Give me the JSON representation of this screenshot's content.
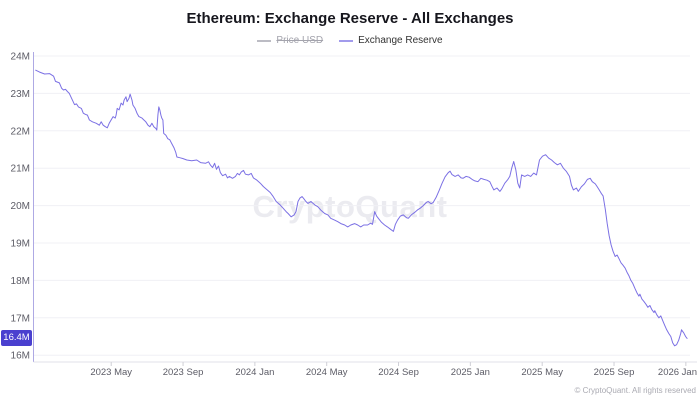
{
  "title": "Ethereum: Exchange Reserve - All Exchanges",
  "legend": [
    {
      "label": "Price USD",
      "color": "#bcbcc4",
      "disabled": true
    },
    {
      "label": "Exchange Reserve",
      "color": "#a29bec",
      "disabled": false
    }
  ],
  "watermark": "CryptoQuant",
  "copyright": "© CryptoQuant. All rights reserved",
  "last_value_badge": {
    "label": "16.4M",
    "color": "#4a40cf"
  },
  "chart_data": {
    "type": "line",
    "title": "Ethereum: Exchange Reserve - All Exchanges",
    "series_name": "Exchange Reserve",
    "line_color": "#7b70e4",
    "x_unit": "decimal_year",
    "xlim": [
      2022.975,
      2026.01
    ],
    "ylim": [
      16,
      24
    ],
    "grid": "horizontal",
    "legend_position": "top",
    "y_ticks": [
      {
        "v": 24,
        "label": "24M"
      },
      {
        "v": 23,
        "label": "23M"
      },
      {
        "v": 22,
        "label": "22M"
      },
      {
        "v": 21,
        "label": "21M"
      },
      {
        "v": 20,
        "label": "20M"
      },
      {
        "v": 19,
        "label": "19M"
      },
      {
        "v": 18,
        "label": "18M"
      },
      {
        "v": 17,
        "label": "17M"
      },
      {
        "v": 16,
        "label": "16M"
      }
    ],
    "x_ticks": [
      {
        "t": 2023.3333,
        "label": "2023 May"
      },
      {
        "t": 2023.6667,
        "label": "2023 Sep"
      },
      {
        "t": 2024.0,
        "label": "2024 Jan"
      },
      {
        "t": 2024.3333,
        "label": "2024 May"
      },
      {
        "t": 2024.6667,
        "label": "2024 Sep"
      },
      {
        "t": 2025.0,
        "label": "2025 Jan"
      },
      {
        "t": 2025.3333,
        "label": "2025 May"
      },
      {
        "t": 2025.6667,
        "label": "2025 Sep"
      },
      {
        "t": 2026.0,
        "label": "2026 Jan"
      }
    ],
    "points": [
      [
        2022.983,
        23.62
      ],
      [
        2023.001,
        23.57
      ],
      [
        2023.024,
        23.52
      ],
      [
        2023.047,
        23.53
      ],
      [
        2023.066,
        23.46
      ],
      [
        2023.075,
        23.32
      ],
      [
        2023.093,
        23.28
      ],
      [
        2023.103,
        23.14
      ],
      [
        2023.112,
        23.09
      ],
      [
        2023.121,
        23.11
      ],
      [
        2023.13,
        23.05
      ],
      [
        2023.139,
        23.0
      ],
      [
        2023.153,
        22.82
      ],
      [
        2023.163,
        22.7
      ],
      [
        2023.172,
        22.72
      ],
      [
        2023.181,
        22.64
      ],
      [
        2023.195,
        22.6
      ],
      [
        2023.204,
        22.47
      ],
      [
        2023.213,
        22.44
      ],
      [
        2023.223,
        22.42
      ],
      [
        2023.232,
        22.29
      ],
      [
        2023.246,
        22.24
      ],
      [
        2023.264,
        22.2
      ],
      [
        2023.278,
        22.15
      ],
      [
        2023.287,
        22.24
      ],
      [
        2023.296,
        22.15
      ],
      [
        2023.306,
        22.11
      ],
      [
        2023.315,
        22.08
      ],
      [
        2023.324,
        22.2
      ],
      [
        2023.333,
        22.29
      ],
      [
        2023.342,
        22.38
      ],
      [
        2023.352,
        22.34
      ],
      [
        2023.356,
        22.42
      ],
      [
        2023.361,
        22.6
      ],
      [
        2023.37,
        22.56
      ],
      [
        2023.379,
        22.74
      ],
      [
        2023.388,
        22.69
      ],
      [
        2023.393,
        22.82
      ],
      [
        2023.402,
        22.91
      ],
      [
        2023.407,
        22.78
      ],
      [
        2023.416,
        22.87
      ],
      [
        2023.421,
        22.98
      ],
      [
        2023.43,
        22.82
      ],
      [
        2023.434,
        22.69
      ],
      [
        2023.444,
        22.6
      ],
      [
        2023.453,
        22.47
      ],
      [
        2023.462,
        22.38
      ],
      [
        2023.476,
        22.34
      ],
      [
        2023.485,
        22.29
      ],
      [
        2023.494,
        22.24
      ],
      [
        2023.504,
        22.15
      ],
      [
        2023.513,
        22.11
      ],
      [
        2023.522,
        22.2
      ],
      [
        2023.531,
        22.11
      ],
      [
        2023.541,
        22.06
      ],
      [
        2023.545,
        22.02
      ],
      [
        2023.55,
        22.42
      ],
      [
        2023.554,
        22.64
      ],
      [
        2023.559,
        22.56
      ],
      [
        2023.564,
        22.42
      ],
      [
        2023.568,
        22.34
      ],
      [
        2023.573,
        22.29
      ],
      [
        2023.577,
        21.93
      ],
      [
        2023.587,
        21.88
      ],
      [
        2023.596,
        21.79
      ],
      [
        2023.605,
        21.76
      ],
      [
        2023.614,
        21.66
      ],
      [
        2023.624,
        21.55
      ],
      [
        2023.633,
        21.42
      ],
      [
        2023.638,
        21.3
      ],
      [
        2023.651,
        21.28
      ],
      [
        2023.665,
        21.26
      ],
      [
        2023.684,
        21.22
      ],
      [
        2023.707,
        21.2
      ],
      [
        2023.73,
        21.22
      ],
      [
        2023.748,
        21.15
      ],
      [
        2023.771,
        21.13
      ],
      [
        2023.785,
        21.17
      ],
      [
        2023.794,
        21.08
      ],
      [
        2023.804,
        21.02
      ],
      [
        2023.813,
        21.13
      ],
      [
        2023.822,
        20.97
      ],
      [
        2023.831,
        21.06
      ],
      [
        2023.84,
        20.88
      ],
      [
        2023.85,
        20.8
      ],
      [
        2023.864,
        20.84
      ],
      [
        2023.873,
        20.74
      ],
      [
        2023.882,
        20.78
      ],
      [
        2023.896,
        20.73
      ],
      [
        2023.91,
        20.78
      ],
      [
        2023.919,
        20.86
      ],
      [
        2023.928,
        20.82
      ],
      [
        2023.937,
        20.9
      ],
      [
        2023.947,
        20.94
      ],
      [
        2023.956,
        20.84
      ],
      [
        2023.97,
        20.82
      ],
      [
        2023.983,
        20.86
      ],
      [
        2023.993,
        20.74
      ],
      [
        2024.007,
        20.69
      ],
      [
        2024.025,
        20.6
      ],
      [
        2024.039,
        20.51
      ],
      [
        2024.053,
        20.44
      ],
      [
        2024.071,
        20.35
      ],
      [
        2024.085,
        20.24
      ],
      [
        2024.099,
        20.11
      ],
      [
        2024.117,
        20.02
      ],
      [
        2024.131,
        19.93
      ],
      [
        2024.145,
        19.84
      ],
      [
        2024.154,
        19.79
      ],
      [
        2024.168,
        19.7
      ],
      [
        2024.182,
        19.75
      ],
      [
        2024.191,
        19.84
      ],
      [
        2024.2,
        20.11
      ],
      [
        2024.209,
        20.2
      ],
      [
        2024.219,
        20.24
      ],
      [
        2024.228,
        20.18
      ],
      [
        2024.237,
        20.11
      ],
      [
        2024.246,
        20.06
      ],
      [
        2024.26,
        20.11
      ],
      [
        2024.278,
        20.02
      ],
      [
        2024.292,
        19.97
      ],
      [
        2024.306,
        19.88
      ],
      [
        2024.324,
        19.79
      ],
      [
        2024.339,
        19.75
      ],
      [
        2024.352,
        19.66
      ],
      [
        2024.371,
        19.61
      ],
      [
        2024.385,
        19.57
      ],
      [
        2024.399,
        19.52
      ],
      [
        2024.417,
        19.48
      ],
      [
        2024.431,
        19.43
      ],
      [
        2024.445,
        19.48
      ],
      [
        2024.463,
        19.52
      ],
      [
        2024.477,
        19.48
      ],
      [
        2024.491,
        19.43
      ],
      [
        2024.505,
        19.48
      ],
      [
        2024.523,
        19.48
      ],
      [
        2024.537,
        19.53
      ],
      [
        2024.546,
        19.5
      ],
      [
        2024.556,
        19.84
      ],
      [
        2024.565,
        19.72
      ],
      [
        2024.574,
        19.65
      ],
      [
        2024.588,
        19.55
      ],
      [
        2024.602,
        19.48
      ],
      [
        2024.615,
        19.43
      ],
      [
        2024.629,
        19.37
      ],
      [
        2024.643,
        19.31
      ],
      [
        2024.652,
        19.5
      ],
      [
        2024.662,
        19.61
      ],
      [
        2024.675,
        19.72
      ],
      [
        2024.689,
        19.75
      ],
      [
        2024.703,
        19.68
      ],
      [
        2024.712,
        19.66
      ],
      [
        2024.726,
        19.75
      ],
      [
        2024.74,
        19.81
      ],
      [
        2024.754,
        19.88
      ],
      [
        2024.767,
        19.93
      ],
      [
        2024.781,
        20.0
      ],
      [
        2024.795,
        20.08
      ],
      [
        2024.804,
        20.11
      ],
      [
        2024.818,
        20.05
      ],
      [
        2024.827,
        20.08
      ],
      [
        2024.841,
        20.22
      ],
      [
        2024.855,
        20.4
      ],
      [
        2024.869,
        20.6
      ],
      [
        2024.883,
        20.77
      ],
      [
        2024.897,
        20.88
      ],
      [
        2024.906,
        20.92
      ],
      [
        2024.915,
        20.83
      ],
      [
        2024.929,
        20.78
      ],
      [
        2024.943,
        20.82
      ],
      [
        2024.957,
        20.74
      ],
      [
        2024.966,
        20.73
      ],
      [
        2024.98,
        20.78
      ],
      [
        2024.994,
        20.76
      ],
      [
        2025.008,
        20.7
      ],
      [
        2025.021,
        20.66
      ],
      [
        2025.035,
        20.64
      ],
      [
        2025.049,
        20.73
      ],
      [
        2025.063,
        20.7
      ],
      [
        2025.077,
        20.68
      ],
      [
        2025.09,
        20.64
      ],
      [
        2025.1,
        20.52
      ],
      [
        2025.109,
        20.42
      ],
      [
        2025.123,
        20.47
      ],
      [
        2025.137,
        20.38
      ],
      [
        2025.146,
        20.45
      ],
      [
        2025.16,
        20.6
      ],
      [
        2025.174,
        20.7
      ],
      [
        2025.183,
        20.78
      ],
      [
        2025.192,
        21.0
      ],
      [
        2025.201,
        21.18
      ],
      [
        2025.211,
        20.96
      ],
      [
        2025.22,
        20.6
      ],
      [
        2025.229,
        20.47
      ],
      [
        2025.238,
        20.82
      ],
      [
        2025.252,
        20.78
      ],
      [
        2025.266,
        20.82
      ],
      [
        2025.28,
        20.78
      ],
      [
        2025.294,
        20.87
      ],
      [
        2025.307,
        20.82
      ],
      [
        2025.321,
        21.22
      ],
      [
        2025.335,
        21.32
      ],
      [
        2025.349,
        21.36
      ],
      [
        2025.363,
        21.27
      ],
      [
        2025.377,
        21.22
      ],
      [
        2025.39,
        21.15
      ],
      [
        2025.404,
        21.09
      ],
      [
        2025.418,
        21.13
      ],
      [
        2025.432,
        21.0
      ],
      [
        2025.446,
        20.91
      ],
      [
        2025.46,
        20.78
      ],
      [
        2025.469,
        20.55
      ],
      [
        2025.478,
        20.42
      ],
      [
        2025.492,
        20.47
      ],
      [
        2025.501,
        20.38
      ],
      [
        2025.515,
        20.5
      ],
      [
        2025.529,
        20.58
      ],
      [
        2025.543,
        20.7
      ],
      [
        2025.556,
        20.73
      ],
      [
        2025.566,
        20.64
      ],
      [
        2025.58,
        20.58
      ],
      [
        2025.589,
        20.5
      ],
      [
        2025.598,
        20.42
      ],
      [
        2025.607,
        20.33
      ],
      [
        2025.616,
        20.26
      ],
      [
        2025.626,
        19.9
      ],
      [
        2025.635,
        19.52
      ],
      [
        2025.644,
        19.2
      ],
      [
        2025.653,
        18.95
      ],
      [
        2025.662,
        18.78
      ],
      [
        2025.672,
        18.64
      ],
      [
        2025.681,
        18.68
      ],
      [
        2025.69,
        18.58
      ],
      [
        2025.699,
        18.47
      ],
      [
        2025.708,
        18.41
      ],
      [
        2025.718,
        18.33
      ],
      [
        2025.727,
        18.22
      ],
      [
        2025.736,
        18.12
      ],
      [
        2025.745,
        18.0
      ],
      [
        2025.754,
        17.92
      ],
      [
        2025.764,
        17.78
      ],
      [
        2025.773,
        17.67
      ],
      [
        2025.782,
        17.58
      ],
      [
        2025.787,
        17.63
      ],
      [
        2025.796,
        17.5
      ],
      [
        2025.805,
        17.44
      ],
      [
        2025.815,
        17.36
      ],
      [
        2025.824,
        17.28
      ],
      [
        2025.833,
        17.33
      ],
      [
        2025.842,
        17.22
      ],
      [
        2025.852,
        17.14
      ],
      [
        2025.856,
        17.19
      ],
      [
        2025.865,
        17.08
      ],
      [
        2025.875,
        17.0
      ],
      [
        2025.884,
        17.05
      ],
      [
        2025.893,
        16.92
      ],
      [
        2025.902,
        16.8
      ],
      [
        2025.911,
        16.68
      ],
      [
        2025.921,
        16.58
      ],
      [
        2025.93,
        16.5
      ],
      [
        2025.939,
        16.33
      ],
      [
        2025.948,
        16.25
      ],
      [
        2025.957,
        16.28
      ],
      [
        2025.967,
        16.4
      ],
      [
        2025.976,
        16.58
      ],
      [
        2025.98,
        16.68
      ],
      [
        2025.99,
        16.6
      ],
      [
        2025.999,
        16.5
      ],
      [
        2026.006,
        16.45
      ]
    ]
  }
}
